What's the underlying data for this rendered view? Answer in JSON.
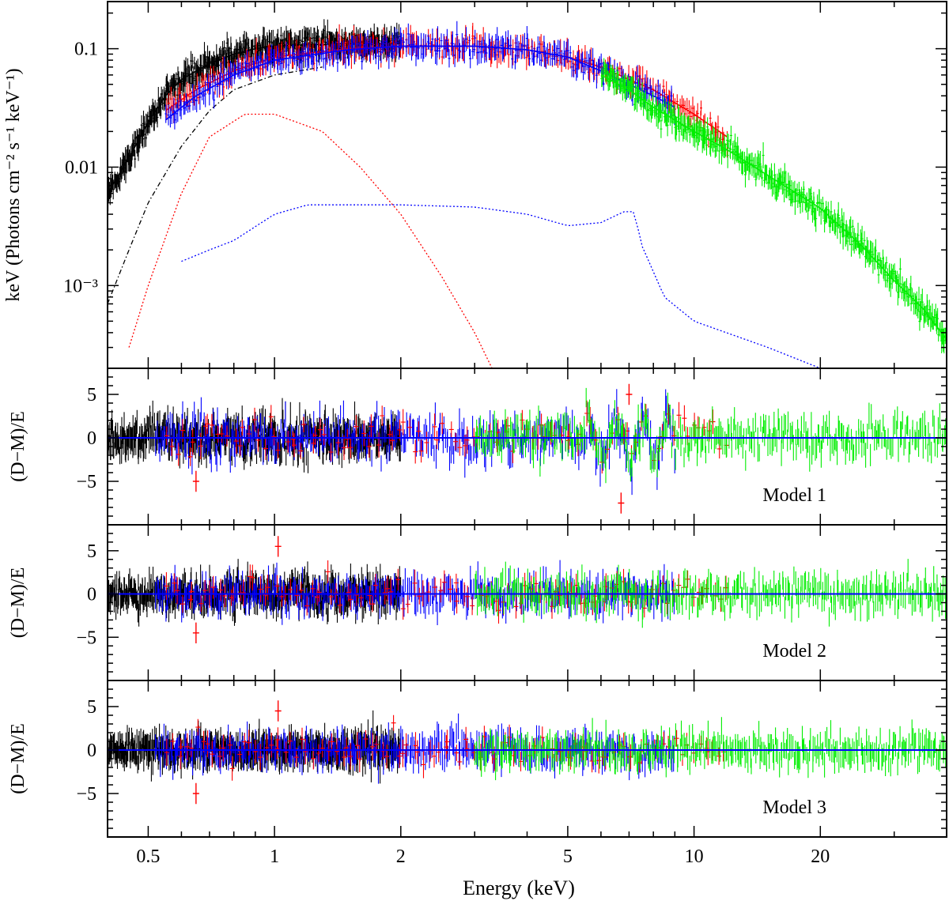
{
  "chart_data": [
    {
      "type": "line",
      "panel": "spectrum",
      "ylabel": "keV (Photons cm⁻² s⁻¹ keV⁻¹)",
      "xscale": "log",
      "yscale": "log",
      "xlim": [
        0.4,
        40
      ],
      "ylim": [
        0.0002,
        0.25
      ],
      "yticks": [
        {
          "value": 0.1,
          "label": "0.1"
        },
        {
          "value": 0.01,
          "label": "0.01"
        },
        {
          "value": 0.001,
          "label": "10⁻³"
        }
      ],
      "series": [
        {
          "name": "black data",
          "color": "#000000",
          "x": [
            0.4,
            0.45,
            0.5,
            0.55,
            0.6,
            0.7,
            0.8,
            0.9,
            1.0,
            1.2,
            1.5,
            1.8,
            2.0
          ],
          "y": [
            0.006,
            0.012,
            0.024,
            0.04,
            0.055,
            0.075,
            0.09,
            0.1,
            0.105,
            0.108,
            0.11,
            0.11,
            0.11
          ]
        },
        {
          "name": "red data",
          "color": "#ff0000",
          "x": [
            0.55,
            0.65,
            0.8,
            1.0,
            1.5,
            2.0,
            3.0,
            4.0,
            5.0,
            6.0,
            7.0,
            8.0,
            9.0,
            10.0,
            12.0
          ],
          "y": [
            0.03,
            0.045,
            0.065,
            0.085,
            0.1,
            0.105,
            0.105,
            0.098,
            0.085,
            0.07,
            0.055,
            0.045,
            0.035,
            0.028,
            0.018
          ]
        },
        {
          "name": "blue data",
          "color": "#0000ff",
          "x": [
            0.55,
            0.65,
            0.8,
            1.0,
            1.5,
            2.0,
            3.0,
            4.0,
            5.0,
            6.0,
            7.0,
            8.0,
            9.0
          ],
          "y": [
            0.025,
            0.04,
            0.06,
            0.08,
            0.098,
            0.105,
            0.105,
            0.098,
            0.085,
            0.065,
            0.05,
            0.04,
            0.032
          ]
        },
        {
          "name": "green data",
          "color": "#00ee00",
          "x": [
            6.0,
            7.0,
            8.0,
            10.0,
            12.0,
            15.0,
            20.0,
            25.0,
            30.0,
            35.0,
            40.0
          ],
          "y": [
            0.06,
            0.045,
            0.032,
            0.02,
            0.014,
            0.0085,
            0.0045,
            0.0022,
            0.0011,
            0.00065,
            0.00035
          ]
        },
        {
          "name": "cool plasma component",
          "color": "#ff0000",
          "x": [
            0.45,
            0.5,
            0.6,
            0.7,
            0.85,
            1.0,
            1.3,
            1.6,
            2.0,
            2.5,
            3.0,
            3.3
          ],
          "y": [
            0.0003,
            0.001,
            0.006,
            0.018,
            0.028,
            0.028,
            0.02,
            0.01,
            0.004,
            0.0012,
            0.0004,
            0.0002
          ]
        },
        {
          "name": "soft component (dash-dot)",
          "color": "#000000",
          "x": [
            0.4,
            0.45,
            0.5,
            0.6,
            0.7,
            0.8,
            1.0,
            1.3
          ],
          "y": [
            0.0007,
            0.002,
            0.005,
            0.015,
            0.03,
            0.045,
            0.06,
            0.07
          ]
        },
        {
          "name": "reflection / line component",
          "color": "#0000ff",
          "x": [
            0.6,
            0.7,
            0.8,
            1.0,
            1.2,
            1.5,
            2.0,
            3.0,
            4.0,
            5.0,
            6.0,
            6.8,
            7.2,
            7.5,
            8.5,
            10.0,
            15.0,
            20.0
          ],
          "y": [
            0.0016,
            0.002,
            0.0024,
            0.004,
            0.0048,
            0.0048,
            0.0048,
            0.0046,
            0.004,
            0.0032,
            0.0034,
            0.0042,
            0.0042,
            0.0022,
            0.0008,
            0.0005,
            0.0003,
            0.0002
          ]
        }
      ]
    },
    {
      "type": "scatter",
      "panel": "residuals-1",
      "ylabel": "(D−M)/E",
      "annotation": "Model 1",
      "xscale": "log",
      "xlim": [
        0.4,
        40
      ],
      "ylim": [
        -10,
        8
      ],
      "yticks": [
        {
          "value": 5,
          "label": "5"
        },
        {
          "value": 0,
          "label": "0"
        },
        {
          "value": -5,
          "label": "−5"
        }
      ],
      "residual_spread_sigma": 2.0,
      "notable_features": [
        {
          "x": 6.7,
          "y": -7.5
        },
        {
          "x": 7.0,
          "y": 5.0
        },
        {
          "x": 0.65,
          "y": -5.0
        }
      ]
    },
    {
      "type": "scatter",
      "panel": "residuals-2",
      "ylabel": "(D−M)/E",
      "annotation": "Model 2",
      "xscale": "log",
      "xlim": [
        0.4,
        40
      ],
      "ylim": [
        -10,
        8
      ],
      "yticks": [
        {
          "value": 5,
          "label": "5"
        },
        {
          "value": 0,
          "label": "0"
        },
        {
          "value": -5,
          "label": "−5"
        }
      ],
      "residual_spread_sigma": 1.6,
      "notable_features": [
        {
          "x": 1.02,
          "y": 5.5
        },
        {
          "x": 0.65,
          "y": -4.5
        }
      ]
    },
    {
      "type": "scatter",
      "panel": "residuals-3",
      "ylabel": "(D−M)/E",
      "annotation": "Model 3",
      "xscale": "log",
      "xlim": [
        0.4,
        40
      ],
      "ylim": [
        -10,
        8
      ],
      "yticks": [
        {
          "value": 5,
          "label": "5"
        },
        {
          "value": 0,
          "label": "0"
        },
        {
          "value": -5,
          "label": "−5"
        }
      ],
      "residual_spread_sigma": 1.5,
      "notable_features": [
        {
          "x": 1.02,
          "y": 4.5
        },
        {
          "x": 0.65,
          "y": -5.0
        }
      ]
    }
  ],
  "xaxis": {
    "label": "Energy (keV)",
    "ticks": [
      {
        "value": 0.5,
        "label": "0.5"
      },
      {
        "value": 1,
        "label": "1"
      },
      {
        "value": 2,
        "label": "2"
      },
      {
        "value": 5,
        "label": "5"
      },
      {
        "value": 10,
        "label": "10"
      },
      {
        "value": 20,
        "label": "20"
      }
    ]
  },
  "colors": {
    "black": "#000000",
    "red": "#ff0000",
    "blue": "#0000ff",
    "green": "#00ee00"
  }
}
